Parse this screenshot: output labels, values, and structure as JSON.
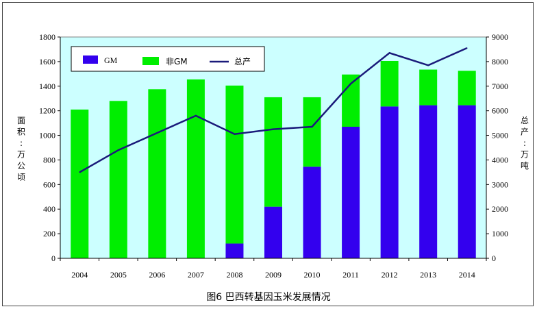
{
  "chart_data": {
    "type": "bar",
    "stacked": true,
    "categories": [
      "2004",
      "2005",
      "2006",
      "2007",
      "2008",
      "2009",
      "2010",
      "2011",
      "2012",
      "2013",
      "2014"
    ],
    "series": [
      {
        "name": "GM",
        "type": "bar",
        "axis": "left",
        "color": "#3300ee",
        "values": [
          0,
          0,
          0,
          0,
          120,
          420,
          745,
          1070,
          1235,
          1245,
          1245
        ]
      },
      {
        "name": "非GM",
        "type": "bar",
        "axis": "left",
        "color": "#00ee00",
        "values": [
          1210,
          1280,
          1375,
          1455,
          1285,
          890,
          565,
          425,
          370,
          290,
          280
        ]
      },
      {
        "name": "总产",
        "type": "line",
        "axis": "right",
        "color": "#1a1a7a",
        "values": [
          3500,
          4400,
          5100,
          5800,
          5050,
          5250,
          5350,
          7100,
          8350,
          7850,
          8550
        ]
      }
    ],
    "yleft": {
      "label": "面积：万公顷",
      "ylim": [
        0,
        1800
      ],
      "ticks": [
        0,
        200,
        400,
        600,
        800,
        1000,
        1200,
        1400,
        1600,
        1800
      ]
    },
    "yright": {
      "label": "总产：万吨",
      "ylim": [
        0,
        9000
      ],
      "ticks": [
        0,
        1000,
        2000,
        3000,
        4000,
        5000,
        6000,
        7000,
        8000,
        9000
      ]
    },
    "grid": false,
    "legend": "top-left",
    "plot_background": "#ccffff",
    "caption": "图6  巴西转基因玉米发展情况"
  }
}
